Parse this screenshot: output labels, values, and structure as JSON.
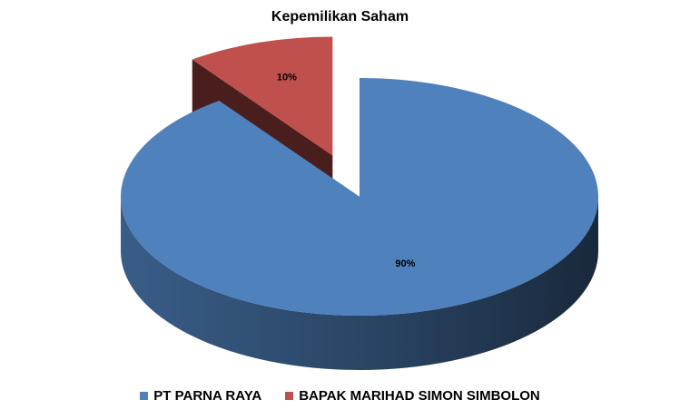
{
  "chart_data": {
    "type": "pie",
    "title": "Kepemilikan Saham",
    "series": [
      {
        "name": "PT PARNA RAYA",
        "value": 90,
        "label": "90%",
        "color": "#4F81BD"
      },
      {
        "name": "BAPAK MARIHAD SIMON SIMBOLON",
        "value": 10,
        "label": "10%",
        "color": "#C0504D"
      }
    ],
    "three_d": true,
    "exploded_slice": "BAPAK MARIHAD SIMON SIMBOLON",
    "legend_position": "bottom"
  }
}
